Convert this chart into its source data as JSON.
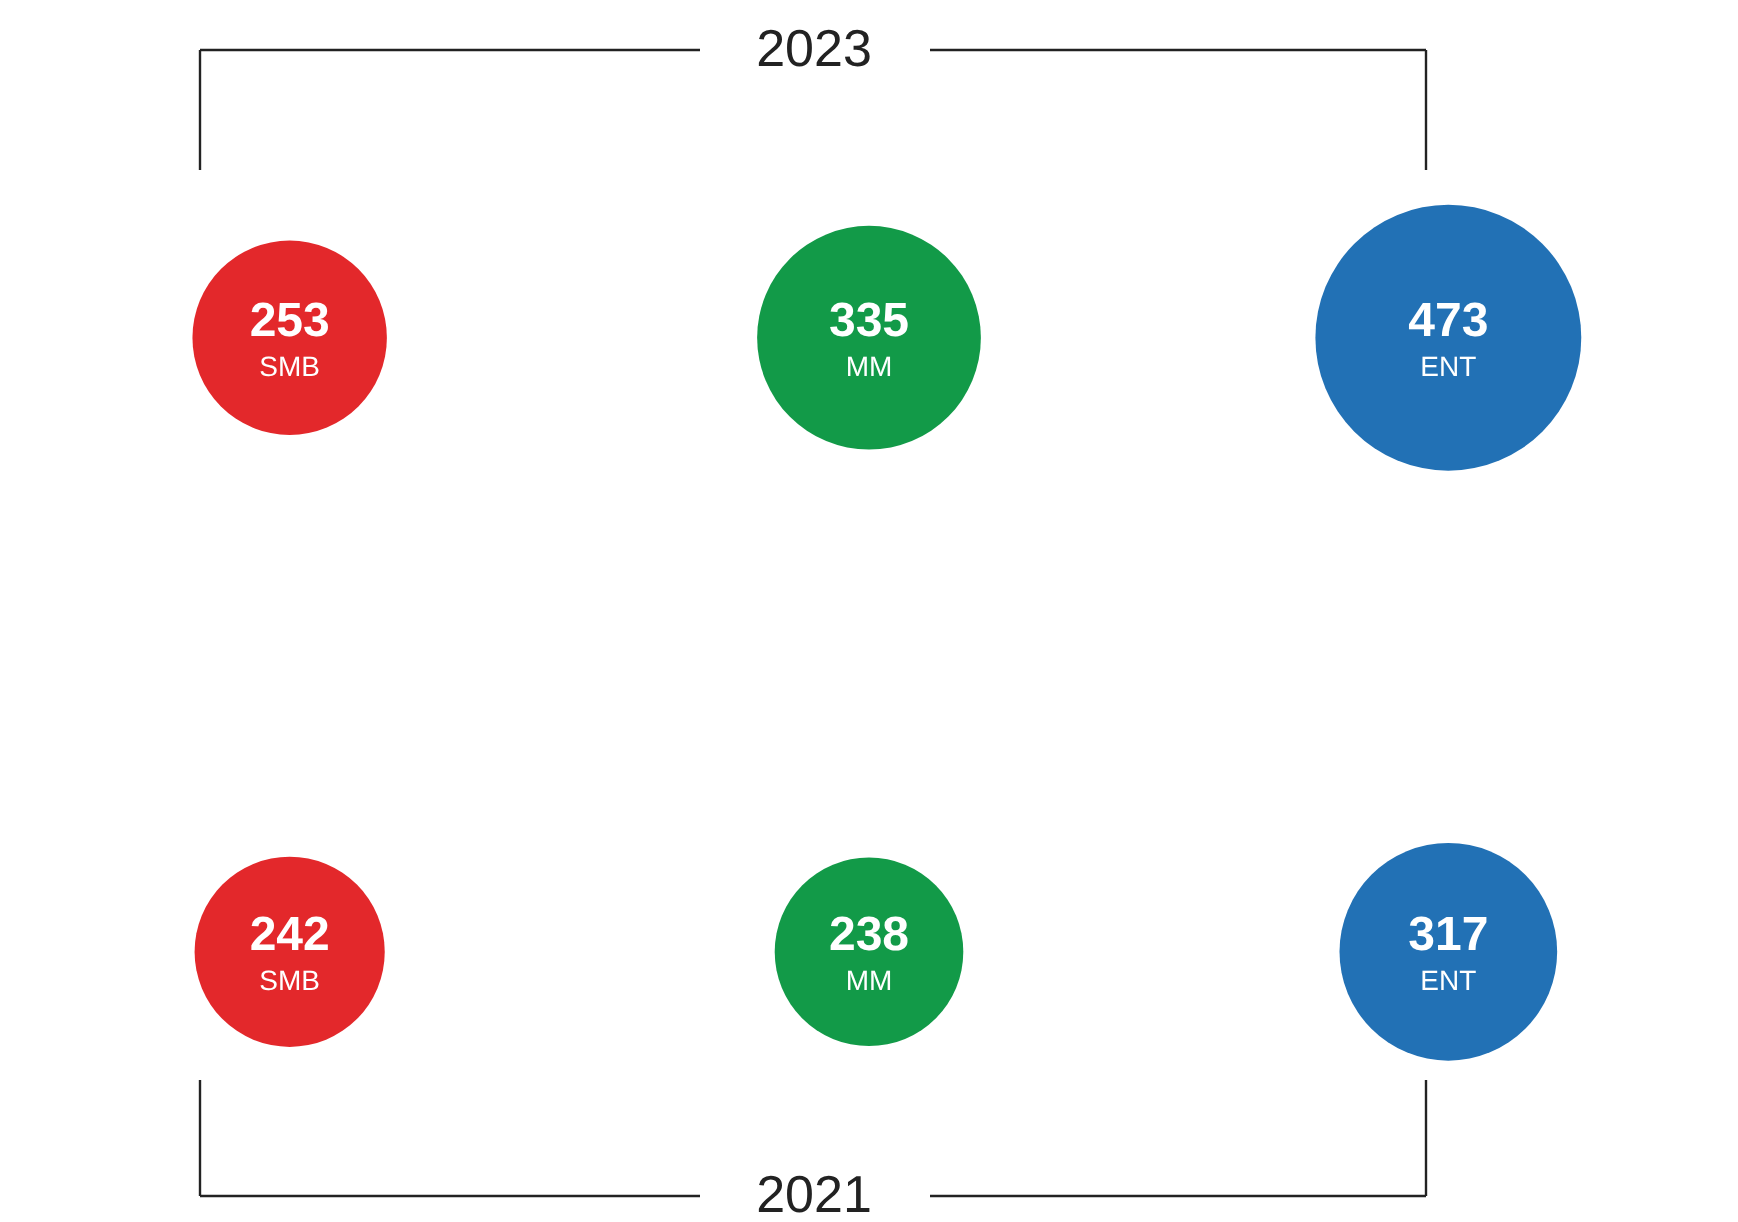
{
  "chart_data": {
    "type": "other",
    "categories": [
      "SMB",
      "MM",
      "ENT"
    ],
    "series": [
      {
        "name": "2023",
        "colors": [
          "#e3282b",
          "#129a48",
          "#2271b5"
        ],
        "values": [
          253,
          335,
          473
        ]
      },
      {
        "name": "2021",
        "colors": [
          "#e3282b",
          "#129a48",
          "#2271b5"
        ],
        "values": [
          242,
          238,
          317
        ]
      }
    ],
    "data_labels": true
  }
}
